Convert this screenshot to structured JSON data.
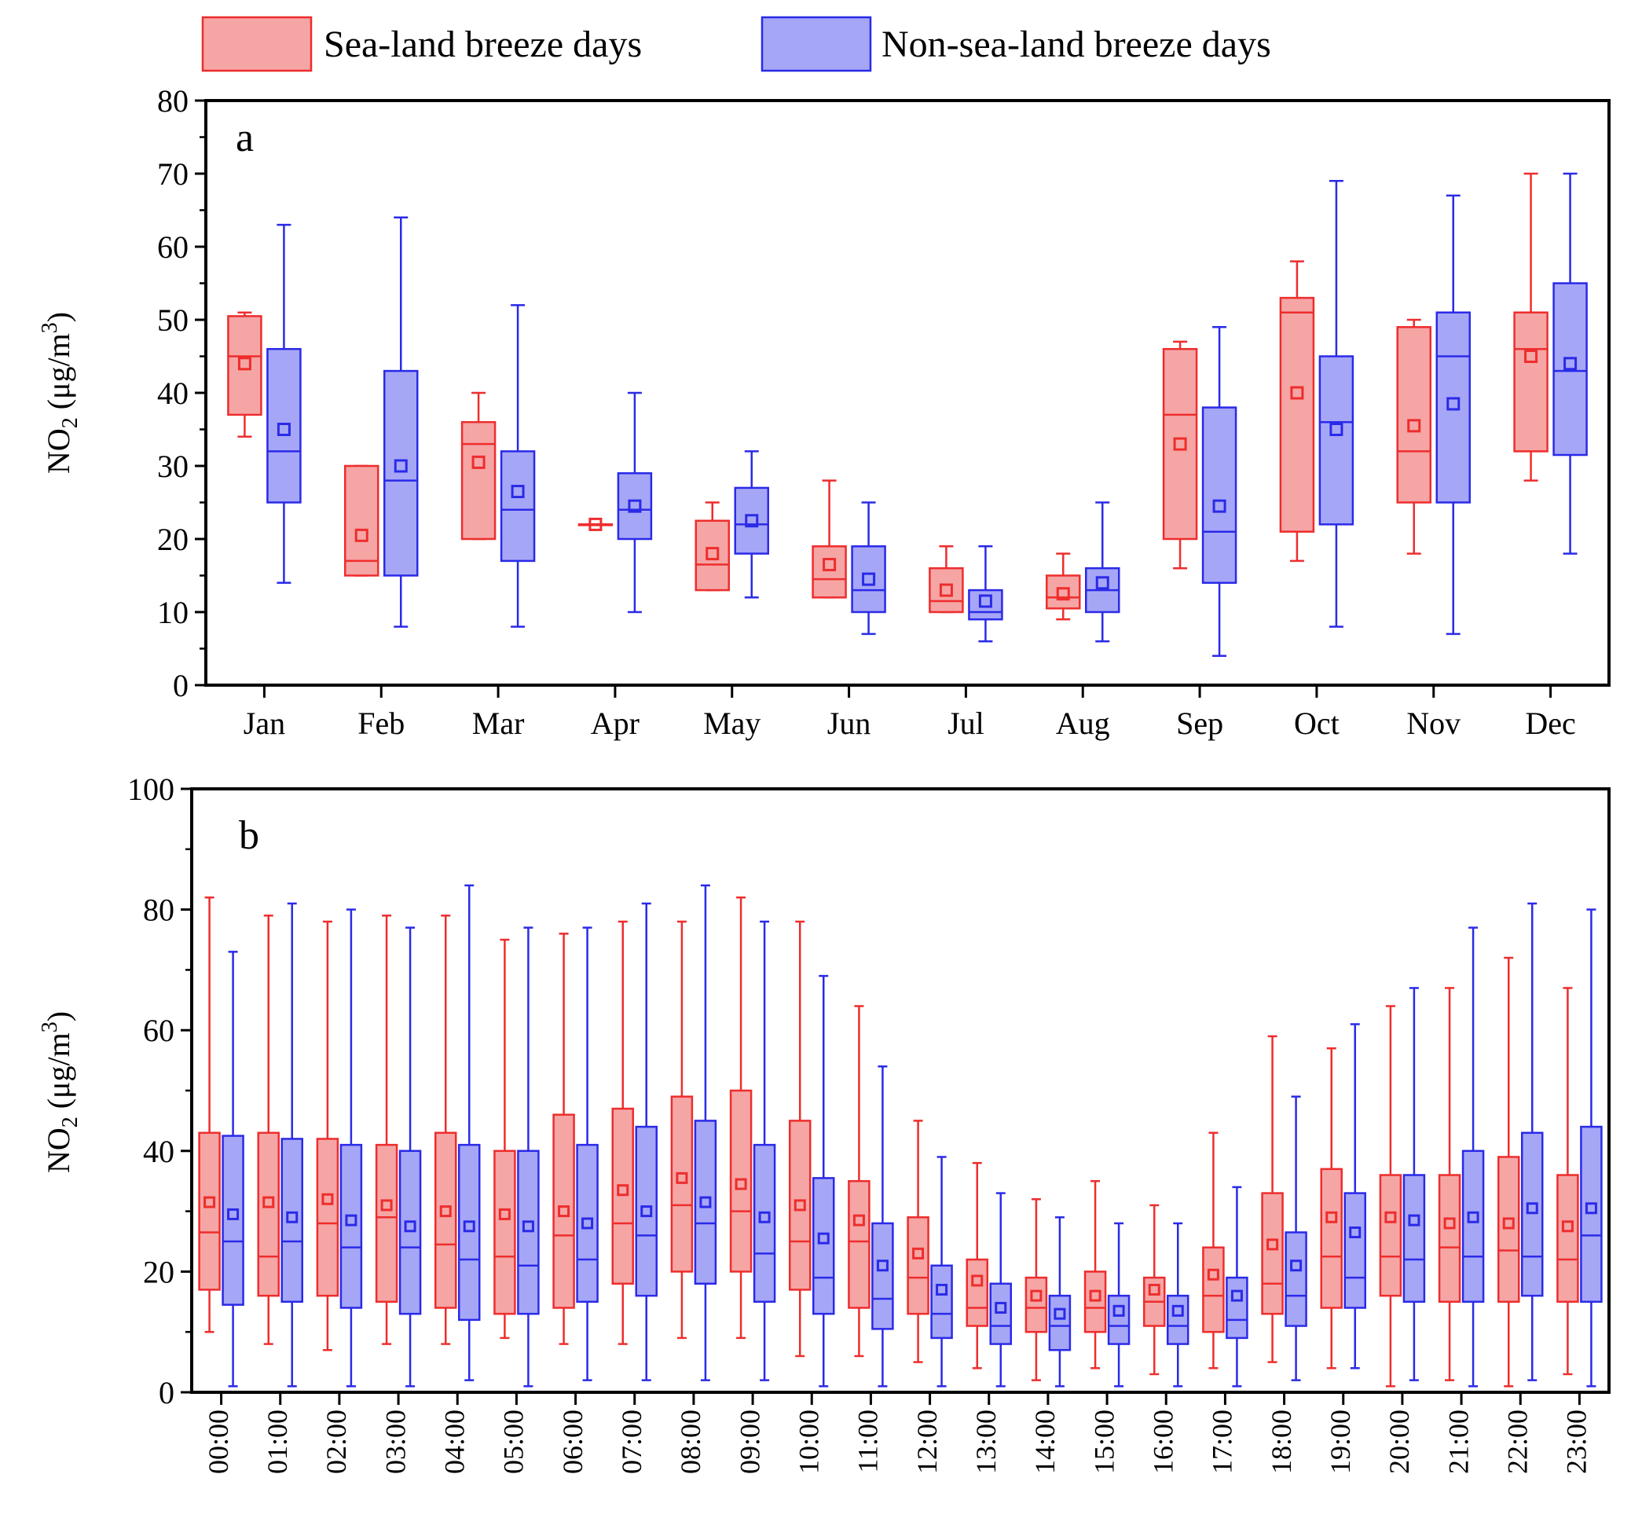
{
  "legend": [
    {
      "label": "Sea-land breeze days",
      "color": "#ee2d2d",
      "fill": "#f6a5a5"
    },
    {
      "label": "Non-sea-land breeze days",
      "color": "#2a2ae8",
      "fill": "#a6a6f7"
    }
  ],
  "chart_data": [
    {
      "type": "box",
      "panel": "a",
      "title": "",
      "ylabel_main": "NO",
      "ylabel_sub": "2",
      "ylabel_unit_open": " (μg/m",
      "ylabel_unit_sup": "3",
      "ylabel_unit_close": ")",
      "ylim": [
        0,
        80
      ],
      "yticks": [
        0,
        10,
        20,
        30,
        40,
        50,
        60,
        70,
        80
      ],
      "categories": [
        "Jan",
        "Feb",
        "Mar",
        "Apr",
        "May",
        "Jun",
        "Jul",
        "Aug",
        "Sep",
        "Oct",
        "Nov",
        "Dec"
      ],
      "series": [
        {
          "name": "Sea-land breeze days",
          "boxes": [
            {
              "min": 34,
              "q1": 37,
              "median": 45,
              "q3": 50.5,
              "max": 51,
              "mean": 44
            },
            {
              "min": 15,
              "q1": 15,
              "median": 17,
              "q3": 30,
              "max": 30,
              "mean": 20.5
            },
            {
              "min": 20,
              "q1": 20,
              "median": 33,
              "q3": 36,
              "max": 40,
              "mean": 30.5
            },
            {
              "min": 22,
              "q1": 22,
              "median": 22,
              "q3": 22,
              "max": 22,
              "mean": 22
            },
            {
              "min": 13,
              "q1": 13,
              "median": 16.5,
              "q3": 22.5,
              "max": 25,
              "mean": 18
            },
            {
              "min": 12,
              "q1": 12,
              "median": 14.5,
              "q3": 19,
              "max": 28,
              "mean": 16.5
            },
            {
              "min": 10,
              "q1": 10,
              "median": 11.5,
              "q3": 16,
              "max": 19,
              "mean": 13
            },
            {
              "min": 9,
              "q1": 10.5,
              "median": 12,
              "q3": 15,
              "max": 18,
              "mean": 12.5
            },
            {
              "min": 16,
              "q1": 20,
              "median": 37,
              "q3": 46,
              "max": 47,
              "mean": 33
            },
            {
              "min": 17,
              "q1": 21,
              "median": 51,
              "q3": 53,
              "max": 58,
              "mean": 40
            },
            {
              "min": 18,
              "q1": 25,
              "median": 32,
              "q3": 49,
              "max": 50,
              "mean": 35.5
            },
            {
              "min": 28,
              "q1": 32,
              "median": 46,
              "q3": 51,
              "max": 70,
              "mean": 45
            }
          ]
        },
        {
          "name": "Non-sea-land breeze days",
          "boxes": [
            {
              "min": 14,
              "q1": 25,
              "median": 32,
              "q3": 46,
              "max": 63,
              "mean": 35
            },
            {
              "min": 8,
              "q1": 15,
              "median": 28,
              "q3": 43,
              "max": 64,
              "mean": 30
            },
            {
              "min": 8,
              "q1": 17,
              "median": 24,
              "q3": 32,
              "max": 52,
              "mean": 26.5
            },
            {
              "min": 10,
              "q1": 20,
              "median": 24,
              "q3": 29,
              "max": 40,
              "mean": 24.5
            },
            {
              "min": 12,
              "q1": 18,
              "median": 22,
              "q3": 27,
              "max": 32,
              "mean": 22.5
            },
            {
              "min": 7,
              "q1": 10,
              "median": 13,
              "q3": 19,
              "max": 25,
              "mean": 14.5
            },
            {
              "min": 6,
              "q1": 9,
              "median": 10,
              "q3": 13,
              "max": 19,
              "mean": 11.5
            },
            {
              "min": 6,
              "q1": 10,
              "median": 13,
              "q3": 16,
              "max": 25,
              "mean": 14
            },
            {
              "min": 4,
              "q1": 14,
              "median": 21,
              "q3": 38,
              "max": 49,
              "mean": 24.5
            },
            {
              "min": 8,
              "q1": 22,
              "median": 36,
              "q3": 45,
              "max": 69,
              "mean": 35
            },
            {
              "min": 7,
              "q1": 25,
              "median": 45,
              "q3": 51,
              "max": 67,
              "mean": 38.5
            },
            {
              "min": 18,
              "q1": 31.5,
              "median": 43,
              "q3": 55,
              "max": 70,
              "mean": 44
            }
          ]
        }
      ]
    },
    {
      "type": "box",
      "panel": "b",
      "title": "",
      "ylabel_main": "NO",
      "ylabel_sub": "2",
      "ylabel_unit_open": " (μg/m",
      "ylabel_unit_sup": "3",
      "ylabel_unit_close": ")",
      "ylim": [
        0,
        100
      ],
      "yticks": [
        0,
        20,
        40,
        60,
        80,
        100
      ],
      "categories": [
        "00:00",
        "01:00",
        "02:00",
        "03:00",
        "04:00",
        "05:00",
        "06:00",
        "07:00",
        "08:00",
        "09:00",
        "10:00",
        "11:00",
        "12:00",
        "13:00",
        "14:00",
        "15:00",
        "16:00",
        "17:00",
        "18:00",
        "19:00",
        "20:00",
        "21:00",
        "22:00",
        "23:00"
      ],
      "series": [
        {
          "name": "Sea-land breeze days",
          "boxes": [
            {
              "min": 10,
              "q1": 17,
              "median": 26.5,
              "q3": 43,
              "max": 82,
              "mean": 31.5
            },
            {
              "min": 8,
              "q1": 16,
              "median": 22.5,
              "q3": 43,
              "max": 79,
              "mean": 31.5
            },
            {
              "min": 7,
              "q1": 16,
              "median": 28,
              "q3": 42,
              "max": 78,
              "mean": 32
            },
            {
              "min": 8,
              "q1": 15,
              "median": 29,
              "q3": 41,
              "max": 79,
              "mean": 31
            },
            {
              "min": 8,
              "q1": 14,
              "median": 24.5,
              "q3": 43,
              "max": 79,
              "mean": 30
            },
            {
              "min": 9,
              "q1": 13,
              "median": 22.5,
              "q3": 40,
              "max": 75,
              "mean": 29.5
            },
            {
              "min": 8,
              "q1": 14,
              "median": 26,
              "q3": 46,
              "max": 76,
              "mean": 30
            },
            {
              "min": 8,
              "q1": 18,
              "median": 28,
              "q3": 47,
              "max": 78,
              "mean": 33.5
            },
            {
              "min": 9,
              "q1": 20,
              "median": 31,
              "q3": 49,
              "max": 78,
              "mean": 35.5
            },
            {
              "min": 9,
              "q1": 20,
              "median": 30,
              "q3": 50,
              "max": 82,
              "mean": 34.5
            },
            {
              "min": 6,
              "q1": 17,
              "median": 25,
              "q3": 45,
              "max": 78,
              "mean": 31
            },
            {
              "min": 6,
              "q1": 14,
              "median": 25,
              "q3": 35,
              "max": 64,
              "mean": 28.5
            },
            {
              "min": 5,
              "q1": 13,
              "median": 19,
              "q3": 29,
              "max": 45,
              "mean": 23
            },
            {
              "min": 4,
              "q1": 11,
              "median": 14,
              "q3": 22,
              "max": 38,
              "mean": 18.5
            },
            {
              "min": 2,
              "q1": 10,
              "median": 14,
              "q3": 19,
              "max": 32,
              "mean": 16
            },
            {
              "min": 4,
              "q1": 10,
              "median": 14,
              "q3": 20,
              "max": 35,
              "mean": 16
            },
            {
              "min": 3,
              "q1": 11,
              "median": 15,
              "q3": 19,
              "max": 31,
              "mean": 17
            },
            {
              "min": 4,
              "q1": 10,
              "median": 16,
              "q3": 24,
              "max": 43,
              "mean": 19.5
            },
            {
              "min": 5,
              "q1": 13,
              "median": 18,
              "q3": 33,
              "max": 59,
              "mean": 24.5
            },
            {
              "min": 4,
              "q1": 14,
              "median": 22.5,
              "q3": 37,
              "max": 57,
              "mean": 29
            },
            {
              "min": 1,
              "q1": 16,
              "median": 22.5,
              "q3": 36,
              "max": 64,
              "mean": 29
            },
            {
              "min": 2,
              "q1": 15,
              "median": 24,
              "q3": 36,
              "max": 67,
              "mean": 28
            },
            {
              "min": 1,
              "q1": 15,
              "median": 23.5,
              "q3": 39,
              "max": 72,
              "mean": 28
            },
            {
              "min": 3,
              "q1": 15,
              "median": 22,
              "q3": 36,
              "max": 67,
              "mean": 27.5
            }
          ]
        },
        {
          "name": "Non-sea-land breeze days",
          "boxes": [
            {
              "min": 1,
              "q1": 14.5,
              "median": 25,
              "q3": 42.5,
              "max": 73,
              "mean": 29.5
            },
            {
              "min": 1,
              "q1": 15,
              "median": 25,
              "q3": 42,
              "max": 81,
              "mean": 29
            },
            {
              "min": 1,
              "q1": 14,
              "median": 24,
              "q3": 41,
              "max": 80,
              "mean": 28.5
            },
            {
              "min": 1,
              "q1": 13,
              "median": 24,
              "q3": 40,
              "max": 77,
              "mean": 27.5
            },
            {
              "min": 2,
              "q1": 12,
              "median": 22,
              "q3": 41,
              "max": 84,
              "mean": 27.5
            },
            {
              "min": 1,
              "q1": 13,
              "median": 21,
              "q3": 40,
              "max": 77,
              "mean": 27.5
            },
            {
              "min": 2,
              "q1": 15,
              "median": 22,
              "q3": 41,
              "max": 77,
              "mean": 28
            },
            {
              "min": 2,
              "q1": 16,
              "median": 26,
              "q3": 44,
              "max": 81,
              "mean": 30
            },
            {
              "min": 2,
              "q1": 18,
              "median": 28,
              "q3": 45,
              "max": 84,
              "mean": 31.5
            },
            {
              "min": 2,
              "q1": 15,
              "median": 23,
              "q3": 41,
              "max": 78,
              "mean": 29
            },
            {
              "min": 1,
              "q1": 13,
              "median": 19,
              "q3": 35.5,
              "max": 69,
              "mean": 25.5
            },
            {
              "min": 1,
              "q1": 10.5,
              "median": 15.5,
              "q3": 28,
              "max": 54,
              "mean": 21
            },
            {
              "min": 1,
              "q1": 9,
              "median": 13,
              "q3": 21,
              "max": 39,
              "mean": 17
            },
            {
              "min": 1,
              "q1": 8,
              "median": 11,
              "q3": 18,
              "max": 33,
              "mean": 14
            },
            {
              "min": 1,
              "q1": 7,
              "median": 11,
              "q3": 16,
              "max": 29,
              "mean": 13
            },
            {
              "min": 1,
              "q1": 8,
              "median": 11,
              "q3": 16,
              "max": 28,
              "mean": 13.5
            },
            {
              "min": 1,
              "q1": 8,
              "median": 11,
              "q3": 16,
              "max": 28,
              "mean": 13.5
            },
            {
              "min": 1,
              "q1": 9,
              "median": 12,
              "q3": 19,
              "max": 34,
              "mean": 16
            },
            {
              "min": 2,
              "q1": 11,
              "median": 16,
              "q3": 26.5,
              "max": 49,
              "mean": 21
            },
            {
              "min": 4,
              "q1": 14,
              "median": 19,
              "q3": 33,
              "max": 61,
              "mean": 26.5
            },
            {
              "min": 2,
              "q1": 15,
              "median": 22,
              "q3": 36,
              "max": 67,
              "mean": 28.5
            },
            {
              "min": 1,
              "q1": 15,
              "median": 22.5,
              "q3": 40,
              "max": 77,
              "mean": 29
            },
            {
              "min": 2,
              "q1": 16,
              "median": 22.5,
              "q3": 43,
              "max": 81,
              "mean": 30.5
            },
            {
              "min": 1,
              "q1": 15,
              "median": 26,
              "q3": 44,
              "max": 80,
              "mean": 30.5
            }
          ]
        }
      ]
    }
  ]
}
